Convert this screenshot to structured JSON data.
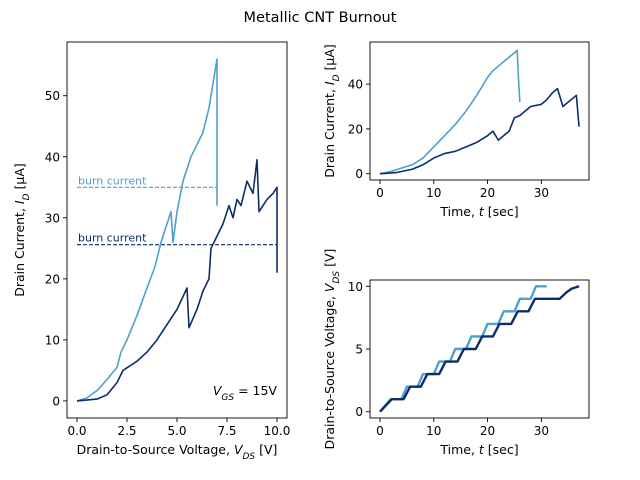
{
  "title": "Metallic CNT Burnout",
  "colors": {
    "light": "#4f9fcf",
    "dark": "#0c2d6b"
  },
  "chart_data": [
    {
      "type": "line",
      "xlabel": "Drain-to-Source Voltage, V_DS [V]",
      "ylabel": "Drain Current, I_D [μA]",
      "xlim": [
        -0.5,
        10.5
      ],
      "ylim": [
        -2.8,
        58.8
      ],
      "xticks": [
        0.0,
        2.5,
        5.0,
        7.5,
        10.0
      ],
      "xtick_labels": [
        "0.0",
        "2.5",
        "5.0",
        "7.5",
        "10.0"
      ],
      "yticks": [
        0,
        10,
        20,
        30,
        40,
        50
      ],
      "ytick_labels": [
        "0",
        "10",
        "20",
        "30",
        "40",
        "50"
      ],
      "annotation_text": "V_GS = 15V",
      "series": [
        {
          "color": "light",
          "points": [
            [
              0,
              0
            ],
            [
              0.5,
              0.5
            ],
            [
              1.0,
              1.7
            ],
            [
              1.5,
              3.5
            ],
            [
              2.0,
              5.5
            ],
            [
              2.2,
              8
            ],
            [
              2.5,
              10
            ],
            [
              3.0,
              14
            ],
            [
              3.5,
              18.5
            ],
            [
              3.9,
              22
            ],
            [
              4.2,
              26
            ],
            [
              4.5,
              29
            ],
            [
              4.7,
              31
            ],
            [
              4.8,
              26
            ],
            [
              5.0,
              31
            ],
            [
              5.3,
              36
            ],
            [
              5.7,
              40
            ],
            [
              6.0,
              42
            ],
            [
              6.3,
              44
            ],
            [
              6.6,
              48
            ],
            [
              6.8,
              52
            ],
            [
              7.0,
              56
            ],
            [
              7.0,
              32
            ]
          ]
        },
        {
          "color": "dark",
          "points": [
            [
              0,
              0
            ],
            [
              1.0,
              0.3
            ],
            [
              1.5,
              1
            ],
            [
              2.0,
              3
            ],
            [
              2.3,
              5
            ],
            [
              3.0,
              6.5
            ],
            [
              3.5,
              8
            ],
            [
              4.0,
              10
            ],
            [
              4.5,
              12.5
            ],
            [
              5.0,
              15
            ],
            [
              5.5,
              18.5
            ],
            [
              5.6,
              12
            ],
            [
              6.0,
              15
            ],
            [
              6.3,
              18
            ],
            [
              6.6,
              20
            ],
            [
              6.7,
              25
            ],
            [
              7.0,
              27
            ],
            [
              7.3,
              29
            ],
            [
              7.6,
              32
            ],
            [
              7.8,
              30
            ],
            [
              8.0,
              33
            ],
            [
              8.2,
              32
            ],
            [
              8.5,
              36
            ],
            [
              8.8,
              34
            ],
            [
              9.0,
              39.5
            ],
            [
              9.1,
              31
            ],
            [
              9.3,
              32
            ],
            [
              9.5,
              33
            ],
            [
              9.8,
              34
            ],
            [
              10.0,
              35
            ],
            [
              10.0,
              21
            ]
          ]
        }
      ],
      "reference_lines": [
        {
          "y": 35,
          "x_start": 0,
          "x_end": 7.0,
          "color": "light",
          "label": "burn current"
        },
        {
          "y": 25.6,
          "x_start": 0,
          "x_end": 10.0,
          "color": "dark",
          "label": "burn current"
        }
      ]
    },
    {
      "type": "line",
      "xlabel": "Time, t [sec]",
      "ylabel": "Drain Current, I_D [μA]",
      "xlim": [
        -1.85,
        38.85
      ],
      "ylim": [
        -2.8,
        58.8
      ],
      "xticks": [
        0,
        10,
        20,
        30
      ],
      "xtick_labels": [
        "0",
        "10",
        "20",
        "30"
      ],
      "yticks": [
        0,
        20,
        40
      ],
      "ytick_labels": [
        "0",
        "20",
        "40"
      ],
      "series": [
        {
          "color": "light",
          "points": [
            [
              0,
              0
            ],
            [
              2,
              1
            ],
            [
              4,
              2.5
            ],
            [
              6,
              4
            ],
            [
              8,
              7
            ],
            [
              10,
              12
            ],
            [
              12,
              17
            ],
            [
              14,
              22
            ],
            [
              16,
              28
            ],
            [
              18,
              35
            ],
            [
              20,
              43
            ],
            [
              21,
              46
            ],
            [
              22,
              48
            ],
            [
              24,
              52
            ],
            [
              25.5,
              55
            ],
            [
              25.8,
              40
            ],
            [
              26,
              32
            ]
          ]
        },
        {
          "color": "dark",
          "points": [
            [
              0,
              0
            ],
            [
              3,
              0.5
            ],
            [
              6,
              2
            ],
            [
              8,
              4
            ],
            [
              10,
              7
            ],
            [
              12,
              9
            ],
            [
              14,
              10
            ],
            [
              16,
              12
            ],
            [
              18,
              14
            ],
            [
              20,
              17
            ],
            [
              21,
              19
            ],
            [
              22,
              15
            ],
            [
              24,
              19
            ],
            [
              25,
              25
            ],
            [
              26,
              26
            ],
            [
              27,
              28
            ],
            [
              28,
              30
            ],
            [
              30,
              31
            ],
            [
              31,
              33
            ],
            [
              32,
              36
            ],
            [
              33,
              38
            ],
            [
              34,
              30
            ],
            [
              35,
              32
            ],
            [
              36,
              34
            ],
            [
              36.5,
              35
            ],
            [
              37,
              21
            ]
          ]
        }
      ]
    },
    {
      "type": "line",
      "xlabel": "Time, t [sec]",
      "ylabel": "Drain-to-Source Voltage, V_DS [V]",
      "xlim": [
        -1.85,
        38.85
      ],
      "ylim": [
        -0.5,
        10.5
      ],
      "xticks": [
        0,
        10,
        20,
        30
      ],
      "xtick_labels": [
        "0",
        "10",
        "20",
        "30"
      ],
      "yticks": [
        0,
        5,
        10
      ],
      "ytick_labels": [
        "0",
        "5",
        "10"
      ],
      "series": [
        {
          "color": "light",
          "points": [
            [
              0,
              0
            ],
            [
              2,
              1
            ],
            [
              4,
              1
            ],
            [
              5,
              2
            ],
            [
              7,
              2
            ],
            [
              8,
              3
            ],
            [
              10,
              3
            ],
            [
              11,
              4
            ],
            [
              13,
              4
            ],
            [
              14,
              5
            ],
            [
              16,
              5
            ],
            [
              17,
              6
            ],
            [
              19,
              6
            ],
            [
              20,
              7
            ],
            [
              22,
              7
            ],
            [
              23,
              8
            ],
            [
              25,
              8
            ],
            [
              26,
              9
            ],
            [
              28,
              9
            ],
            [
              29,
              10
            ],
            [
              31,
              10
            ]
          ]
        },
        {
          "color": "dark",
          "points": [
            [
              0,
              0
            ],
            [
              2.2,
              1
            ],
            [
              4.4,
              1
            ],
            [
              5.6,
              2
            ],
            [
              7.6,
              2
            ],
            [
              8.8,
              3
            ],
            [
              11,
              3
            ],
            [
              12.2,
              4
            ],
            [
              14.4,
              4
            ],
            [
              15.6,
              5
            ],
            [
              17.8,
              5
            ],
            [
              19,
              6
            ],
            [
              21,
              6
            ],
            [
              22.2,
              7
            ],
            [
              24.4,
              7
            ],
            [
              25.6,
              8
            ],
            [
              27.6,
              8
            ],
            [
              28.8,
              9
            ],
            [
              31,
              9
            ],
            [
              32.2,
              9
            ],
            [
              33.4,
              9
            ],
            [
              34.6,
              9.5
            ],
            [
              35.6,
              9.8
            ],
            [
              37,
              10
            ]
          ]
        }
      ]
    }
  ]
}
